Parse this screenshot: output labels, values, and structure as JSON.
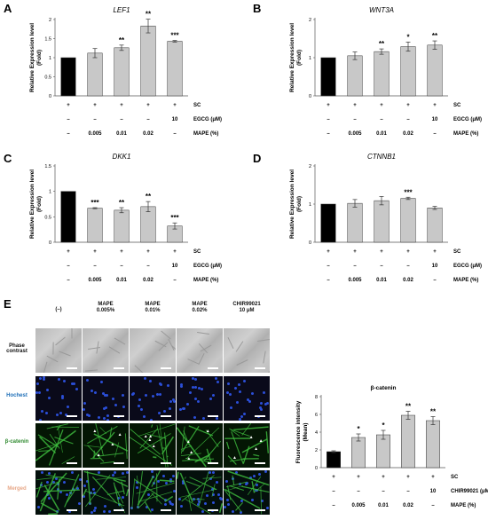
{
  "panels": {
    "A": "A",
    "B": "B",
    "C": "C",
    "D": "D",
    "E": "E"
  },
  "ylabel": "Relative Expression level",
  "ylabel_unit": "(Fold)",
  "fluo_ylabel": "Fluorescence intensity",
  "fluo_ylabel_unit": "(Mean)",
  "conditions": {
    "sc": {
      "label": "SC",
      "values": [
        "+",
        "+",
        "+",
        "+",
        "+"
      ]
    },
    "egcg": {
      "label": "EGCG (μM)",
      "values": [
        "–",
        "–",
        "–",
        "–",
        "10"
      ]
    },
    "mape": {
      "label": "MAPE (%)",
      "values": [
        "–",
        "0.005",
        "0.01",
        "0.02",
        "–"
      ]
    }
  },
  "conditions_e": {
    "sc": {
      "label": "SC",
      "values": [
        "+",
        "+",
        "+",
        "+",
        "+"
      ]
    },
    "chir": {
      "label": "CHIR99021 (μM)",
      "values": [
        "–",
        "–",
        "–",
        "–",
        "10"
      ]
    },
    "mape": {
      "label": "MAPE (%)",
      "values": [
        "–",
        "0.005",
        "0.01",
        "0.02",
        "–"
      ]
    }
  },
  "micro": {
    "columns": [
      "(–)",
      "MAPE\n0.005%",
      "MAPE\n0.01%",
      "MAPE\n0.02%",
      "CHIR99021\n10 μM"
    ],
    "col1": "(–)",
    "col2a": "MAPE",
    "col2b": "0.005%",
    "col3a": "MAPE",
    "col3b": "0.01%",
    "col4a": "MAPE",
    "col4b": "0.02%",
    "col5a": "CHIR99021",
    "col5b": "10 μM",
    "rows": {
      "phase_a": "Phase",
      "phase_b": "contrast",
      "hoechst": "Hochest",
      "bcat": "β-catenin",
      "merged": "Merged"
    },
    "colors": {
      "hoechst_label": "#1f6fb8",
      "bcat_label": "#2f8a2f",
      "merged_label": "#e8a98a"
    }
  },
  "colors": {
    "control_bar": "#000000",
    "treated_bar": "#c8c8c8",
    "bar_edge": "#333333"
  },
  "chart_data": [
    {
      "id": "A",
      "type": "bar",
      "title": "LEF1",
      "ylim": [
        0,
        2
      ],
      "yticks": [
        0,
        0.5,
        1,
        1.5,
        2
      ],
      "values": [
        1.0,
        1.12,
        1.26,
        1.83,
        1.43
      ],
      "errors": [
        0,
        0.12,
        0.07,
        0.18,
        0.02
      ],
      "significance": [
        "",
        "",
        "**",
        "**",
        "***"
      ]
    },
    {
      "id": "B",
      "type": "bar",
      "title": "WNT3A",
      "ylim": [
        0,
        2
      ],
      "yticks": [
        0,
        1,
        2
      ],
      "values": [
        1.0,
        1.05,
        1.16,
        1.29,
        1.33
      ],
      "errors": [
        0,
        0.1,
        0.07,
        0.12,
        0.11
      ],
      "significance": [
        "",
        "",
        "**",
        "*",
        "**"
      ]
    },
    {
      "id": "C",
      "type": "bar",
      "title": "DKK1",
      "ylim": [
        0,
        1.5
      ],
      "yticks": [
        0,
        0.5,
        1,
        1.5
      ],
      "values": [
        1.0,
        0.67,
        0.63,
        0.7,
        0.32
      ],
      "errors": [
        0,
        0.01,
        0.05,
        0.1,
        0.06
      ],
      "significance": [
        "",
        "***",
        "**",
        "**",
        "***"
      ]
    },
    {
      "id": "D",
      "type": "bar",
      "title": "CTNNB1",
      "ylim": [
        0,
        2
      ],
      "yticks": [
        0,
        1,
        2
      ],
      "values": [
        1.0,
        1.02,
        1.09,
        1.15,
        0.9
      ],
      "errors": [
        0,
        0.1,
        0.11,
        0.03,
        0.04
      ],
      "significance": [
        "",
        "",
        "",
        "***",
        ""
      ]
    },
    {
      "id": "E",
      "type": "bar",
      "title": "β-catenin",
      "ylim": [
        0,
        8
      ],
      "yticks": [
        0,
        2,
        4,
        6,
        8
      ],
      "values": [
        1.8,
        3.4,
        3.7,
        5.9,
        5.3
      ],
      "errors": [
        0.1,
        0.4,
        0.5,
        0.45,
        0.45
      ],
      "significance": [
        "",
        "*",
        "*",
        "**",
        "**"
      ]
    }
  ]
}
